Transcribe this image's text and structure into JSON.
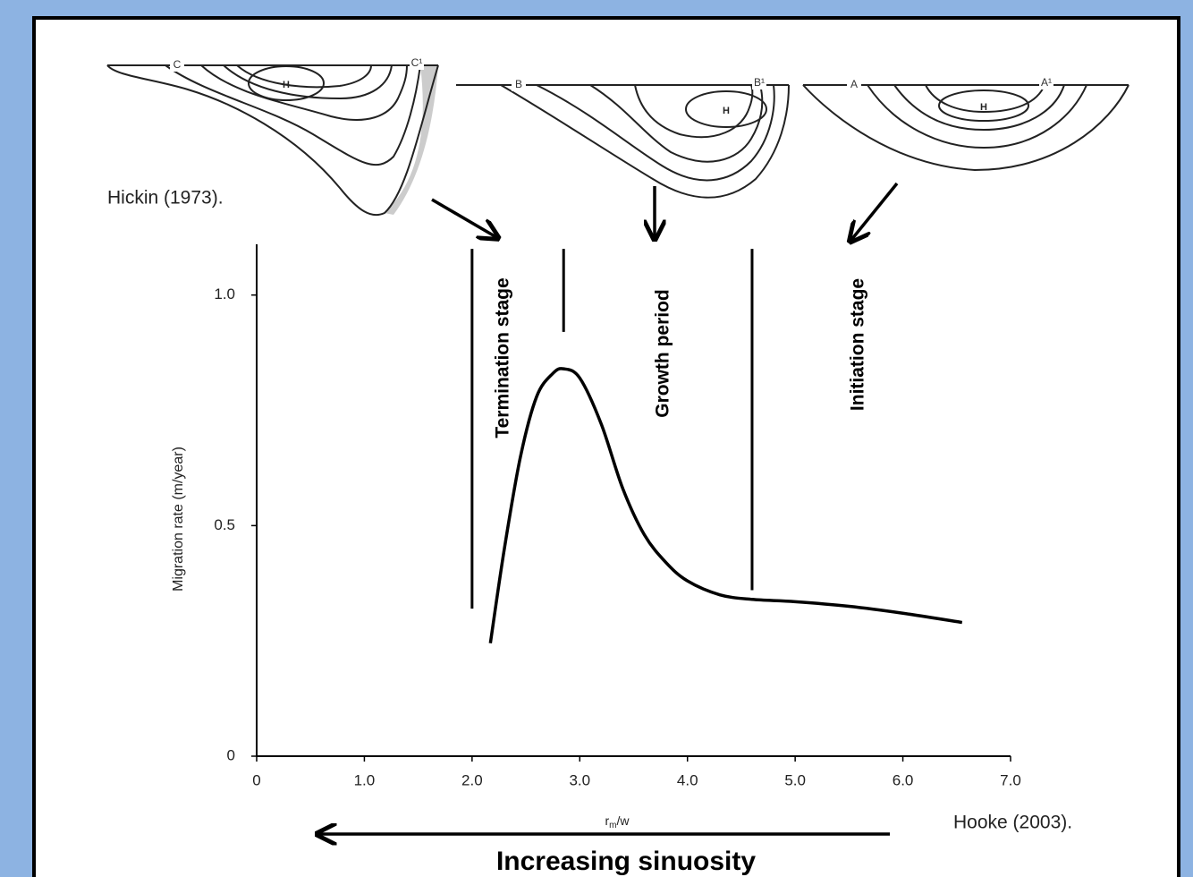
{
  "chart_data": {
    "type": "line",
    "x_label": {
      "base": "r",
      "subscript": "m",
      "rest": "/w"
    },
    "y_label": "Migration rate (m/year)",
    "x": [
      2.17,
      2.3,
      2.45,
      2.6,
      2.75,
      2.85,
      3.0,
      3.2,
      3.4,
      3.6,
      3.8,
      4.0,
      4.3,
      4.6,
      5.0,
      5.5,
      6.0,
      6.55
    ],
    "values": [
      0.245,
      0.45,
      0.65,
      0.78,
      0.83,
      0.84,
      0.82,
      0.72,
      0.58,
      0.48,
      0.42,
      0.38,
      0.35,
      0.34,
      0.335,
      0.325,
      0.31,
      0.29
    ],
    "color": "#000000",
    "xlim": [
      0,
      7
    ],
    "ylim": [
      0,
      1.11
    ],
    "xticks": [
      0,
      {
        "value": 1,
        "label": "1.0"
      },
      {
        "value": 2,
        "label": "2.0"
      },
      {
        "value": 3,
        "label": "3.0"
      },
      {
        "value": 4,
        "label": "4.0"
      },
      {
        "value": 5,
        "label": "5.0"
      },
      {
        "value": 6,
        "label": "6.0"
      },
      {
        "value": 7,
        "label": "7.0"
      }
    ],
    "yticks": [
      0,
      0.5,
      {
        "value": 1,
        "label": "1.0"
      }
    ],
    "stage_labels": [
      "Termination stage",
      "Growth period",
      "Initiation stage"
    ],
    "boundaries": [
      {
        "x": 2.0,
        "y": [
          0.32,
          1.1
        ]
      },
      {
        "x": 2.85,
        "y": [
          0.92,
          1.1
        ]
      },
      {
        "x": 4.6,
        "y": [
          0.36,
          1.1
        ]
      }
    ]
  },
  "sections": [
    {
      "left": "C",
      "right": "C¹",
      "core": "H"
    },
    {
      "left": "B",
      "right": "B¹",
      "core": "H"
    },
    {
      "left": "A",
      "right": "A¹",
      "core": "H"
    }
  ],
  "sources": {
    "hickin": "Hickin (1973).",
    "hooke": "Hooke (2003)."
  },
  "sinuosity_label": "Increasing sinuosity"
}
